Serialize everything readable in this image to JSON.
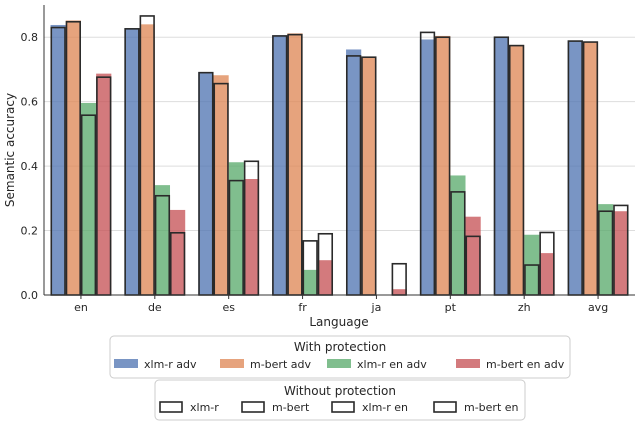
{
  "chart_data": {
    "type": "bar",
    "xlabel": "Language",
    "ylabel": "Semantic accuracy",
    "ylim": [
      0,
      0.9
    ],
    "yticks": [
      "0.0",
      "0.2",
      "0.4",
      "0.6",
      "0.8"
    ],
    "grid": "horizontal",
    "categories": [
      "en",
      "de",
      "es",
      "fr",
      "ja",
      "pt",
      "zh",
      "avg"
    ],
    "legend_with": {
      "title": "With protection",
      "placement": "bottom-center",
      "series": [
        {
          "name": "xlm-r adv",
          "color": "#4c72b0",
          "values": [
            0.838,
            0.828,
            0.692,
            0.806,
            0.762,
            0.793,
            0.802,
            0.79
          ]
        },
        {
          "name": "m-bert adv",
          "color": "#dd8452",
          "values": [
            0.852,
            0.84,
            0.682,
            0.812,
            0.74,
            0.804,
            0.776,
            0.786
          ]
        },
        {
          "name": "xlm-r en adv",
          "color": "#55a868",
          "values": [
            0.596,
            0.341,
            0.412,
            0.078,
            0.0,
            0.371,
            0.187,
            0.282
          ]
        },
        {
          "name": "m-bert en adv",
          "color": "#c44e52",
          "values": [
            0.687,
            0.264,
            0.36,
            0.108,
            0.018,
            0.243,
            0.13,
            0.26
          ]
        }
      ]
    },
    "legend_without": {
      "title": "Without protection",
      "placement": "bottom-center",
      "series": [
        {
          "name": "xlm-r",
          "values": [
            0.83,
            0.826,
            0.69,
            0.804,
            0.742,
            0.815,
            0.8,
            0.788
          ]
        },
        {
          "name": "m-bert",
          "values": [
            0.848,
            0.866,
            0.656,
            0.808,
            0.738,
            0.8,
            0.774,
            0.785
          ]
        },
        {
          "name": "xlm-r en",
          "values": [
            0.558,
            0.308,
            0.355,
            0.168,
            0.0,
            0.32,
            0.093,
            0.26
          ]
        },
        {
          "name": "m-bert en",
          "values": [
            0.676,
            0.193,
            0.415,
            0.19,
            0.097,
            0.182,
            0.194,
            0.278
          ]
        }
      ]
    }
  }
}
